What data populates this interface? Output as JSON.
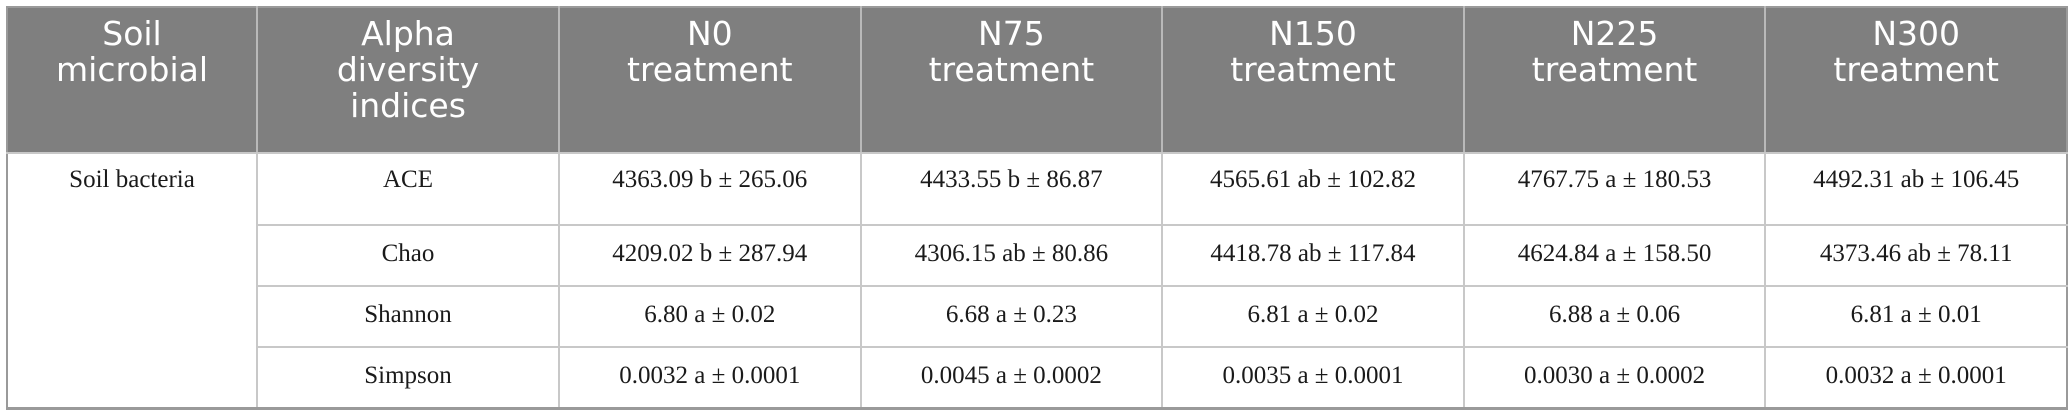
{
  "header": [
    [
      "Soil",
      "microbial"
    ],
    [
      "Alpha",
      "diversity",
      "indices"
    ],
    [
      "N0",
      "treatment"
    ],
    [
      "N75",
      "treatment"
    ],
    [
      "N150",
      "treatment"
    ],
    [
      "N225",
      "treatment"
    ],
    [
      "N300",
      "treatment"
    ]
  ],
  "group_label": "Soil bacteria",
  "rows": [
    {
      "index": "ACE",
      "values": [
        "4363.09 b ± 265.06",
        "4433.55 b ± 86.87",
        "4565.61 ab ± 102.82",
        "4767.75 a ± 180.53",
        "4492.31 ab ± 106.45"
      ]
    },
    {
      "index": "Chao",
      "values": [
        "4209.02 b ± 287.94",
        "4306.15 ab ± 80.86",
        "4418.78 ab ± 117.84",
        "4624.84 a ± 158.50",
        "4373.46 ab ± 78.11"
      ]
    },
    {
      "index": "Shannon",
      "values": [
        "6.80 a ± 0.02",
        "6.68 a ± 0.23",
        "6.81 a ± 0.02",
        "6.88 a ± 0.06",
        "6.81 a ± 0.01"
      ]
    },
    {
      "index": "Simpson",
      "values": [
        "0.0032 a ± 0.0001",
        "0.0045 a ± 0.0002",
        "0.0035 a ± 0.0001",
        "0.0030 a ± 0.0002",
        "0.0032 a ± 0.0001"
      ]
    }
  ]
}
